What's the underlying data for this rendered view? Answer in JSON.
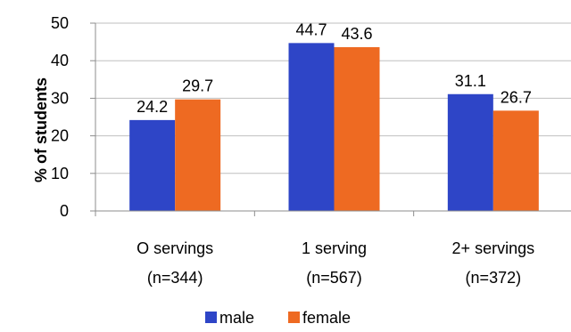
{
  "chart_data": {
    "type": "bar",
    "ylabel": "% of students",
    "xlabel": "",
    "ylim": [
      0,
      50
    ],
    "yticks": [
      0,
      10,
      20,
      30,
      40,
      50
    ],
    "grid": true,
    "legend_position": "bottom",
    "categories": [
      [
        "O servings",
        "(n=344)"
      ],
      [
        "1 serving",
        "(n=567)"
      ],
      [
        "2+ servings",
        "(n=372)"
      ]
    ],
    "series": [
      {
        "name": "male",
        "color": "#2e45c7",
        "values": [
          24.2,
          44.7,
          31.1
        ],
        "labels": [
          "24.2",
          "44.7",
          "31.1"
        ]
      },
      {
        "name": "female",
        "color": "#ee6a22",
        "values": [
          29.7,
          43.6,
          26.7
        ],
        "labels": [
          "29.7",
          "43.6",
          "26.7"
        ]
      }
    ]
  }
}
